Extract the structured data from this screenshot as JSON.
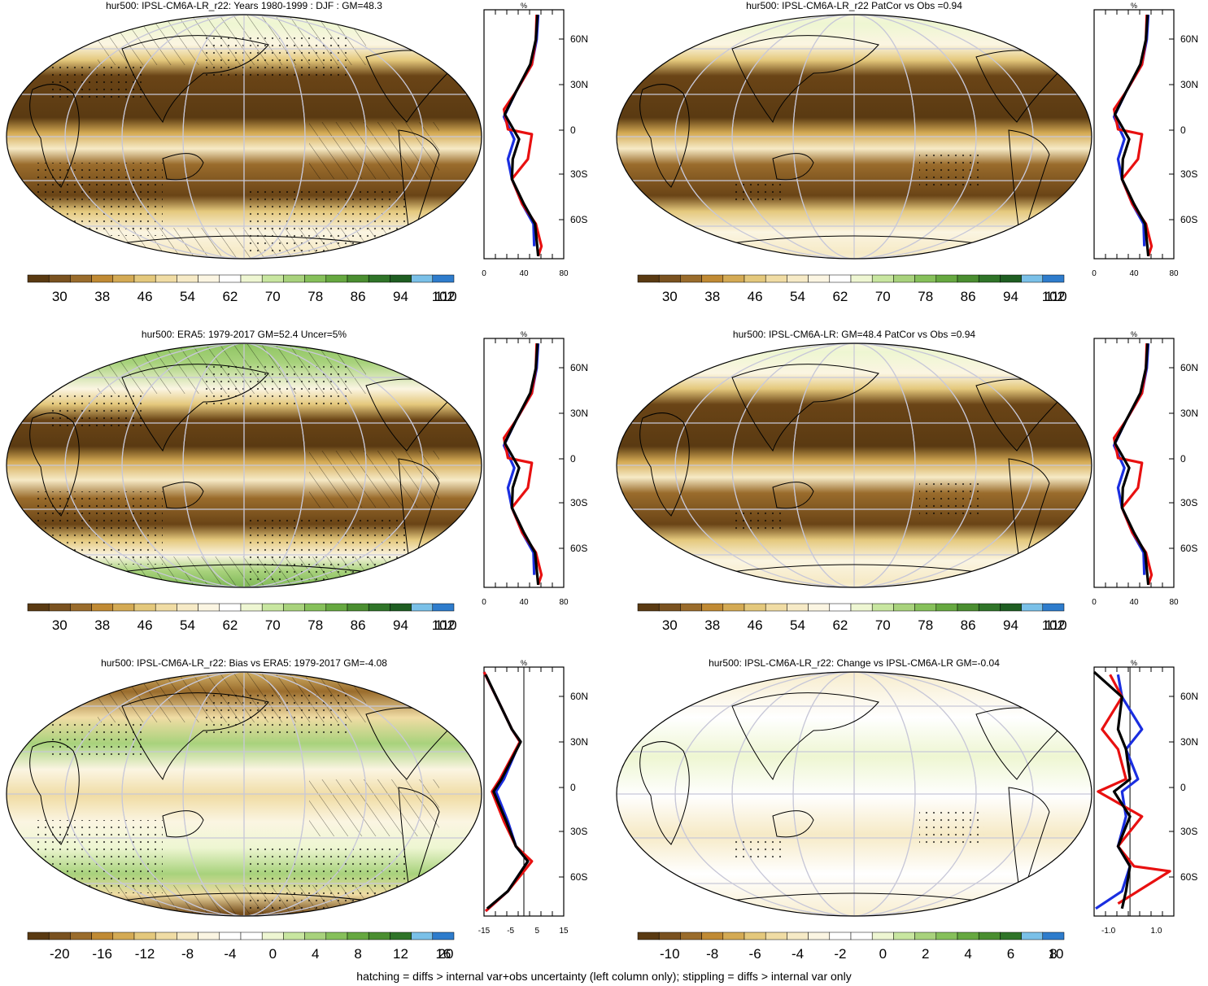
{
  "panels": [
    {
      "title": "hur500: IPSL-CM6A-LR_r22: Years 1980-1999 : DJF : GM=48.3",
      "scheme": "abs",
      "hatch": true,
      "labels": [
        "30",
        "38",
        "46",
        "54",
        "62",
        "70",
        "78",
        "86",
        "94",
        "102",
        "110"
      ],
      "profile": {
        "unit": "%",
        "xticks": [
          "0",
          "40",
          "80"
        ],
        "zeroline": false
      }
    },
    {
      "title": "hur500: IPSL-CM6A-LR_r22 PatCor vs Obs =0.94",
      "scheme": "abs",
      "hatch": false,
      "labels": [
        "30",
        "38",
        "46",
        "54",
        "62",
        "70",
        "78",
        "86",
        "94",
        "102",
        "110"
      ],
      "profile": {
        "unit": "%",
        "xticks": [
          "0",
          "40",
          "80"
        ],
        "zeroline": false
      }
    },
    {
      "title": "hur500: ERA5: 1979-2017 GM=52.4 Uncer=5%",
      "scheme": "abs",
      "hatch": true,
      "labels": [
        "30",
        "38",
        "46",
        "54",
        "62",
        "70",
        "78",
        "86",
        "94",
        "102",
        "110"
      ],
      "profile": {
        "unit": "%",
        "xticks": [
          "0",
          "40",
          "80"
        ],
        "zeroline": false
      }
    },
    {
      "title": "hur500: IPSL-CM6A-LR: GM=48.4 PatCor vs Obs =0.94",
      "scheme": "abs",
      "hatch": false,
      "labels": [
        "30",
        "38",
        "46",
        "54",
        "62",
        "70",
        "78",
        "86",
        "94",
        "102",
        "110"
      ],
      "profile": {
        "unit": "%",
        "xticks": [
          "0",
          "40",
          "80"
        ],
        "zeroline": false
      }
    },
    {
      "title": "hur500: IPSL-CM6A-LR_r22: Bias vs ERA5: 1979-2017 GM=-4.08",
      "scheme": "diff",
      "hatch": true,
      "labels": [
        "-20",
        "-16",
        "-12",
        "-8",
        "-4",
        "0",
        "4",
        "8",
        "12",
        "16",
        "20"
      ],
      "profile": {
        "unit": "%",
        "xticks": [
          "-15",
          "-5",
          "5",
          "15"
        ],
        "zeroline": true
      }
    },
    {
      "title": "hur500: IPSL-CM6A-LR_r22: Change vs IPSL-CM6A-LR GM=-0.04",
      "scheme": "diff",
      "hatch": false,
      "labels": [
        "-10",
        "-8",
        "-6",
        "-4",
        "-2",
        "0",
        "2",
        "4",
        "6",
        "8",
        "10"
      ],
      "profile": {
        "unit": "%",
        "xticks": [
          "-1.0",
          "1.0"
        ],
        "zeroline": true
      }
    }
  ],
  "lat_labels": [
    "60N",
    "30N",
    "0",
    "30S",
    "60S"
  ],
  "colorbar_colors": {
    "abs": [
      "#5a3a12",
      "#7a5220",
      "#9a6c2c",
      "#c08a34",
      "#d4aa54",
      "#e4c87c",
      "#f0dca4",
      "#f6eac6",
      "#fbf5e2",
      "#ffffff",
      "#eef6d2",
      "#c8e6a0",
      "#a8d27c",
      "#86c05a",
      "#66a840",
      "#4a8e30",
      "#2f7428",
      "#1f5e22",
      "#7ac0e8",
      "#2e7ccc"
    ],
    "diff": [
      "#5a3a12",
      "#7a5220",
      "#9a6c2c",
      "#c08a34",
      "#d4aa54",
      "#e4c87c",
      "#f0dca4",
      "#f6eac6",
      "#fbf5e2",
      "#ffffff",
      "#ffffff",
      "#eef6d2",
      "#c8e6a0",
      "#a8d27c",
      "#86c05a",
      "#66a840",
      "#4a8e30",
      "#2f7428",
      "#7ac0e8",
      "#2e7ccc"
    ]
  },
  "line_colors": {
    "model": "#e81010",
    "obs": "#1a2ee0",
    "ens": "#000000"
  },
  "footer": "hatching = diffs > internal var+obs uncertainty (left column only); stippling = diffs > internal var only"
}
